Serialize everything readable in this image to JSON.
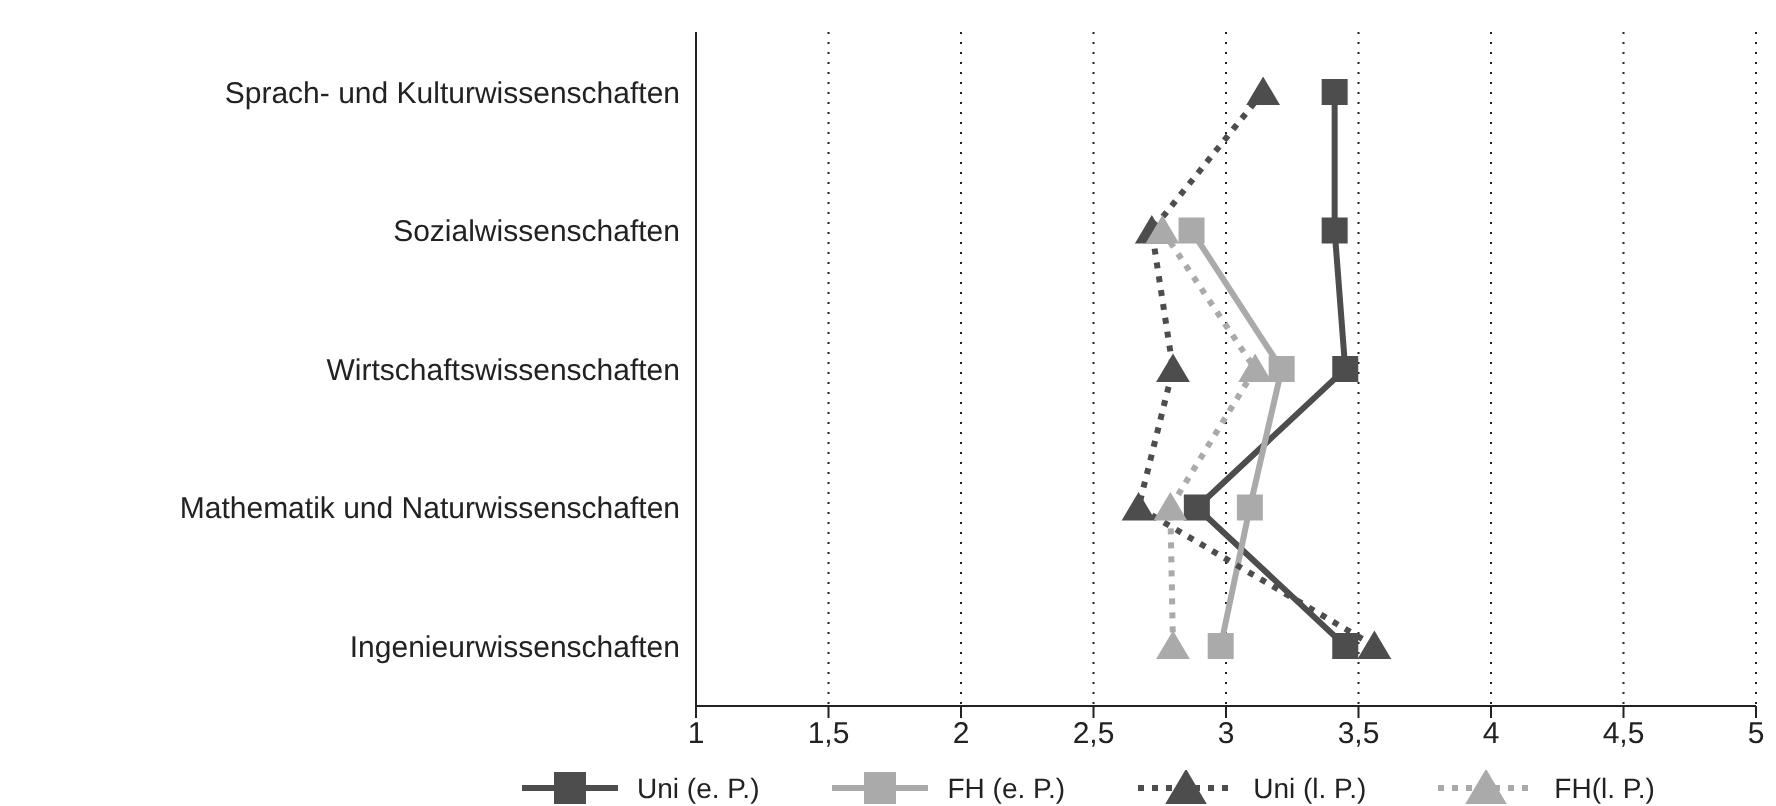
{
  "chart_data": {
    "type": "line",
    "categories": [
      "Sprach- und Kulturwissenschaften",
      "Sozialwissenschaften",
      "Wirtschaftswissenschaften",
      "Mathematik und Naturwissenschaften",
      "Ingenieurwissenschaften"
    ],
    "orientation": "horizontal",
    "series": [
      {
        "name": "Uni (e. P.)",
        "color": "#4d4d4d",
        "marker": "square",
        "line_style": "solid",
        "values": [
          3.41,
          3.41,
          3.45,
          2.89,
          3.45
        ]
      },
      {
        "name": "FH (e. P.)",
        "color": "#aaaaaa",
        "marker": "square",
        "line_style": "solid",
        "values": [
          null,
          2.87,
          3.21,
          3.09,
          2.98
        ]
      },
      {
        "name": "Uni (l. P.)",
        "color": "#4d4d4d",
        "marker": "triangle",
        "line_style": "dotted",
        "values": [
          3.14,
          2.72,
          2.8,
          2.67,
          3.56
        ]
      },
      {
        "name": "FH(l. P.)",
        "color": "#aaaaaa",
        "marker": "triangle",
        "line_style": "dotted",
        "values": [
          null,
          2.76,
          3.11,
          2.79,
          2.8
        ]
      }
    ],
    "xlim": [
      1,
      5
    ],
    "xticks": [
      1,
      {
        "value": 1.5,
        "label": "1,5"
      },
      2,
      {
        "value": 2.5,
        "label": "2,5"
      },
      3,
      {
        "value": 3.5,
        "label": "3,5"
      },
      4,
      {
        "value": 4.5,
        "label": "4,5"
      },
      5
    ],
    "grid": "x",
    "legend": "bottom"
  }
}
